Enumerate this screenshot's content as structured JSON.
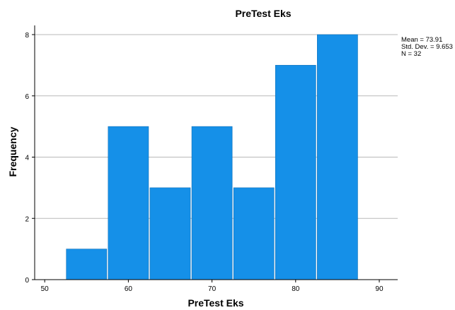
{
  "chart_data": {
    "type": "bar",
    "title": "PreTest Eks",
    "xlabel": "PreTest Eks",
    "ylabel": "Frequency",
    "bins": [
      {
        "start": 52.5,
        "end": 57.5,
        "count": 1
      },
      {
        "start": 57.5,
        "end": 62.5,
        "count": 5
      },
      {
        "start": 62.5,
        "end": 67.5,
        "count": 3
      },
      {
        "start": 67.5,
        "end": 72.5,
        "count": 5
      },
      {
        "start": 72.5,
        "end": 77.5,
        "count": 3
      },
      {
        "start": 77.5,
        "end": 82.5,
        "count": 7
      },
      {
        "start": 82.5,
        "end": 87.5,
        "count": 8
      }
    ],
    "xlim": [
      48.8,
      92.2
    ],
    "ylim": [
      0,
      8.3
    ],
    "xticks": [
      50,
      60,
      70,
      80,
      90
    ],
    "yticks": [
      0,
      2,
      4,
      6,
      8
    ],
    "grid": true,
    "bar_color": "#1590e8",
    "stats": [
      "Mean = 73.91",
      "Std. Dev. = 9.653",
      "N = 32"
    ]
  }
}
